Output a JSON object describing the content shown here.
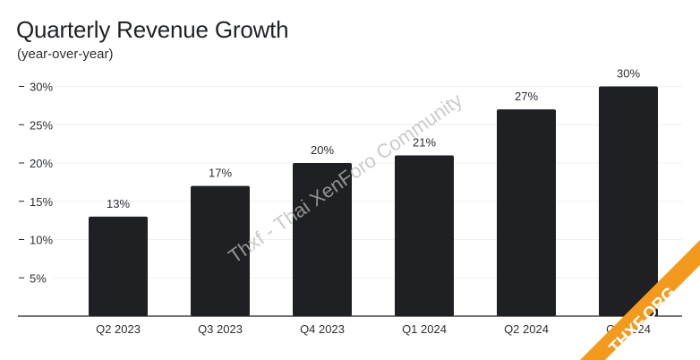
{
  "title": "Quarterly Revenue Growth",
  "subtitle": "(year-over-year)",
  "watermark": "Thxf - Thai XenForo Community",
  "corner_badge": "THXF.ORG",
  "colors": {
    "bar": "#1e2023",
    "axis": "#1e2023",
    "text": "#2b2e33",
    "grid": "#f0f0f0",
    "badge": "#f39a1e"
  },
  "chart_data": {
    "type": "bar",
    "title": "Quarterly Revenue Growth",
    "subtitle": "(year-over-year)",
    "categories": [
      "Q2 2023",
      "Q3 2023",
      "Q4 2023",
      "Q1 2024",
      "Q2 2024",
      "Q3 2024"
    ],
    "values": [
      13,
      17,
      20,
      21,
      27,
      30
    ],
    "data_labels": [
      "13%",
      "17%",
      "20%",
      "21%",
      "27%",
      "30%"
    ],
    "yticks": [
      5,
      10,
      15,
      20,
      25,
      30
    ],
    "ytick_labels": [
      "5%",
      "10%",
      "15%",
      "20%",
      "25%",
      "30%"
    ],
    "ylim": [
      0,
      30
    ],
    "grid": true,
    "legend": "none",
    "xlabel": "",
    "ylabel": ""
  }
}
